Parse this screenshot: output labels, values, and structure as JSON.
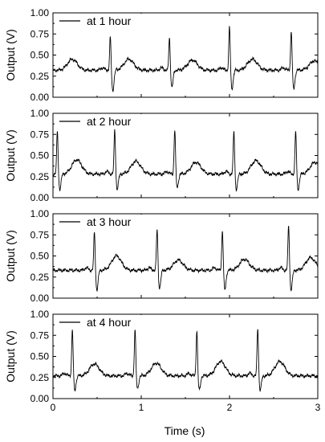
{
  "chart_data": {
    "type": "line",
    "panels": [
      {
        "legend": "at 1 hour",
        "ylabel": "Output (V)",
        "xlim": [
          0,
          3
        ],
        "ylim": [
          0,
          1
        ],
        "ytick_labels": [
          "0.00",
          "0.25",
          "0.50",
          "0.75",
          "1.00"
        ],
        "baseline": 0.32,
        "beats": [
          {
            "t": 0.65,
            "peak": 0.73,
            "trough": 0.08
          },
          {
            "t": 1.32,
            "peak": 0.72,
            "trough": 0.12
          },
          {
            "t": 2.0,
            "peak": 0.85,
            "trough": 0.1
          },
          {
            "t": 2.7,
            "peak": 0.8,
            "trough": 0.1
          }
        ],
        "t_waves": [
          {
            "t": 0.22,
            "amp": 0.13
          },
          {
            "t": 0.86,
            "amp": 0.13
          },
          {
            "t": 1.58,
            "amp": 0.12
          },
          {
            "t": 2.26,
            "amp": 0.13
          },
          {
            "t": 2.96,
            "amp": 0.11
          }
        ]
      },
      {
        "legend": "at 2 hour",
        "ylabel": "Output (V)",
        "xlim": [
          0,
          3
        ],
        "ylim": [
          0,
          1
        ],
        "ytick_labels": [
          "0.00",
          "0.25",
          "0.50",
          "0.75",
          "1.00"
        ],
        "baseline": 0.28,
        "beats": [
          {
            "t": 0.05,
            "peak": 0.8,
            "trough": 0.1
          },
          {
            "t": 0.7,
            "peak": 0.82,
            "trough": 0.1
          },
          {
            "t": 1.38,
            "peak": 0.82,
            "trough": 0.12
          },
          {
            "t": 2.05,
            "peak": 0.8,
            "trough": 0.1
          },
          {
            "t": 2.75,
            "peak": 0.8,
            "trough": 0.1
          }
        ],
        "t_waves": [
          {
            "t": 0.27,
            "amp": 0.17
          },
          {
            "t": 0.94,
            "amp": 0.15
          },
          {
            "t": 1.62,
            "amp": 0.14
          },
          {
            "t": 2.3,
            "amp": 0.16
          },
          {
            "t": 2.97,
            "amp": 0.14
          }
        ]
      },
      {
        "legend": "at 3 hour",
        "ylabel": "Output (V)",
        "xlim": [
          0,
          3
        ],
        "ylim": [
          0,
          1
        ],
        "ytick_labels": [
          "0.00",
          "0.25",
          "0.50",
          "0.75",
          "1.00"
        ],
        "baseline": 0.33,
        "beats": [
          {
            "t": 0.47,
            "peak": 0.8,
            "trough": 0.1
          },
          {
            "t": 1.18,
            "peak": 0.83,
            "trough": 0.12
          },
          {
            "t": 1.92,
            "peak": 0.82,
            "trough": 0.1
          },
          {
            "t": 2.67,
            "peak": 0.88,
            "trough": 0.1
          }
        ],
        "t_waves": [
          {
            "t": 0.72,
            "amp": 0.17
          },
          {
            "t": 1.42,
            "amp": 0.12
          },
          {
            "t": 2.17,
            "amp": 0.13
          },
          {
            "t": 2.92,
            "amp": 0.15
          }
        ]
      },
      {
        "legend": "at 4 hour",
        "ylabel": "Output (V)",
        "xlim": [
          0,
          3
        ],
        "ylim": [
          0,
          1
        ],
        "ytick_labels": [
          "0.00",
          "0.25",
          "0.50",
          "0.75",
          "1.00"
        ],
        "baseline": 0.27,
        "beats": [
          {
            "t": 0.22,
            "peak": 0.83,
            "trough": 0.1
          },
          {
            "t": 0.93,
            "peak": 0.83,
            "trough": 0.12
          },
          {
            "t": 1.63,
            "peak": 0.82,
            "trough": 0.1
          },
          {
            "t": 2.32,
            "peak": 0.85,
            "trough": 0.1
          }
        ],
        "t_waves": [
          {
            "t": 0.47,
            "amp": 0.14
          },
          {
            "t": 1.17,
            "amp": 0.15
          },
          {
            "t": 1.9,
            "amp": 0.17
          },
          {
            "t": 2.57,
            "amp": 0.17
          }
        ]
      }
    ],
    "xlabel": "Time (s)",
    "xtick_labels": [
      "0",
      "1",
      "2",
      "3"
    ],
    "legend_position": "top-left",
    "colors": {
      "line": "#000000",
      "axes": "#000000",
      "background": "#ffffff"
    }
  }
}
